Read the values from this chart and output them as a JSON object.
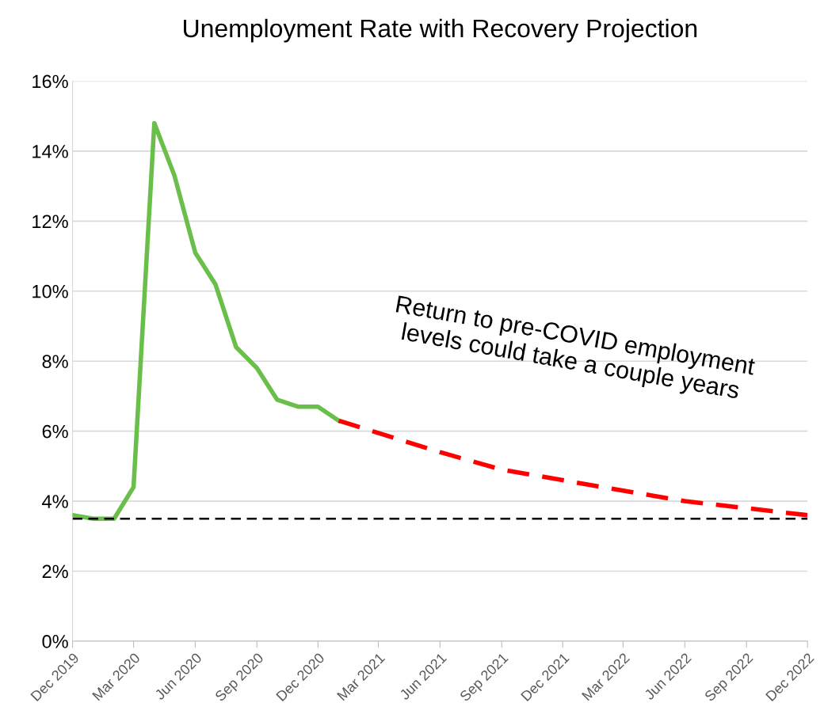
{
  "chart_data": {
    "type": "line",
    "title": "Unemployment Rate with Recovery Projection",
    "series": [
      {
        "color": "#6abf4b",
        "line_style": "solid",
        "x": [
          "2019-12",
          "2020-01",
          "2020-02",
          "2020-03",
          "2020-04",
          "2020-05",
          "2020-06",
          "2020-07",
          "2020-08",
          "2020-09",
          "2020-10",
          "2020-11",
          "2020-12",
          "2021-01"
        ],
        "values": [
          3.6,
          3.5,
          3.5,
          4.4,
          14.8,
          13.3,
          11.1,
          10.2,
          8.4,
          7.8,
          6.9,
          6.7,
          6.7,
          6.3
        ]
      },
      {
        "color": "#ff0000",
        "line_style": "dashed",
        "x": [
          "2021-01",
          "2021-06",
          "2021-09",
          "2021-12",
          "2022-03",
          "2022-06",
          "2022-09",
          "2022-12"
        ],
        "values": [
          6.3,
          5.4,
          4.9,
          4.6,
          4.3,
          4.0,
          3.8,
          3.6
        ]
      }
    ],
    "xlim": [
      "2019-12",
      "2022-12"
    ],
    "xticks": [
      {
        "value": "2019-12",
        "label": "Dec 2019"
      },
      {
        "value": "2020-03",
        "label": "Mar 2020"
      },
      {
        "value": "2020-06",
        "label": "Jun 2020"
      },
      {
        "value": "2020-09",
        "label": "Sep 2020"
      },
      {
        "value": "2020-12",
        "label": "Dec 2020"
      },
      {
        "value": "2021-03",
        "label": "Mar 2021"
      },
      {
        "value": "2021-06",
        "label": "Jun 2021"
      },
      {
        "value": "2021-09",
        "label": "Sep 2021"
      },
      {
        "value": "2021-12",
        "label": "Dec 2021"
      },
      {
        "value": "2022-03",
        "label": "Mar 2022"
      },
      {
        "value": "2022-06",
        "label": "Jun 2022"
      },
      {
        "value": "2022-09",
        "label": "Sep 2022"
      },
      {
        "value": "2022-12",
        "label": "Dec 2022"
      }
    ],
    "ylim": [
      0,
      16
    ],
    "yticks": [
      {
        "value": 0,
        "label": "0%"
      },
      {
        "value": 2,
        "label": "2%"
      },
      {
        "value": 4,
        "label": "4%"
      },
      {
        "value": 6,
        "label": "6%"
      },
      {
        "value": 8,
        "label": "8%"
      },
      {
        "value": 10,
        "label": "10%"
      },
      {
        "value": 12,
        "label": "12%"
      },
      {
        "value": 14,
        "label": "14%"
      },
      {
        "value": 16,
        "label": "16%"
      }
    ],
    "ref_lines": [
      {
        "axis": "y",
        "value": 3.5,
        "label": null,
        "color": "#000000",
        "line_style": "dashed"
      }
    ],
    "annotations": [
      "Return to pre-COVID employment\nlevels could take a couple years"
    ],
    "grid": "y",
    "legend": false,
    "marker": "none"
  }
}
